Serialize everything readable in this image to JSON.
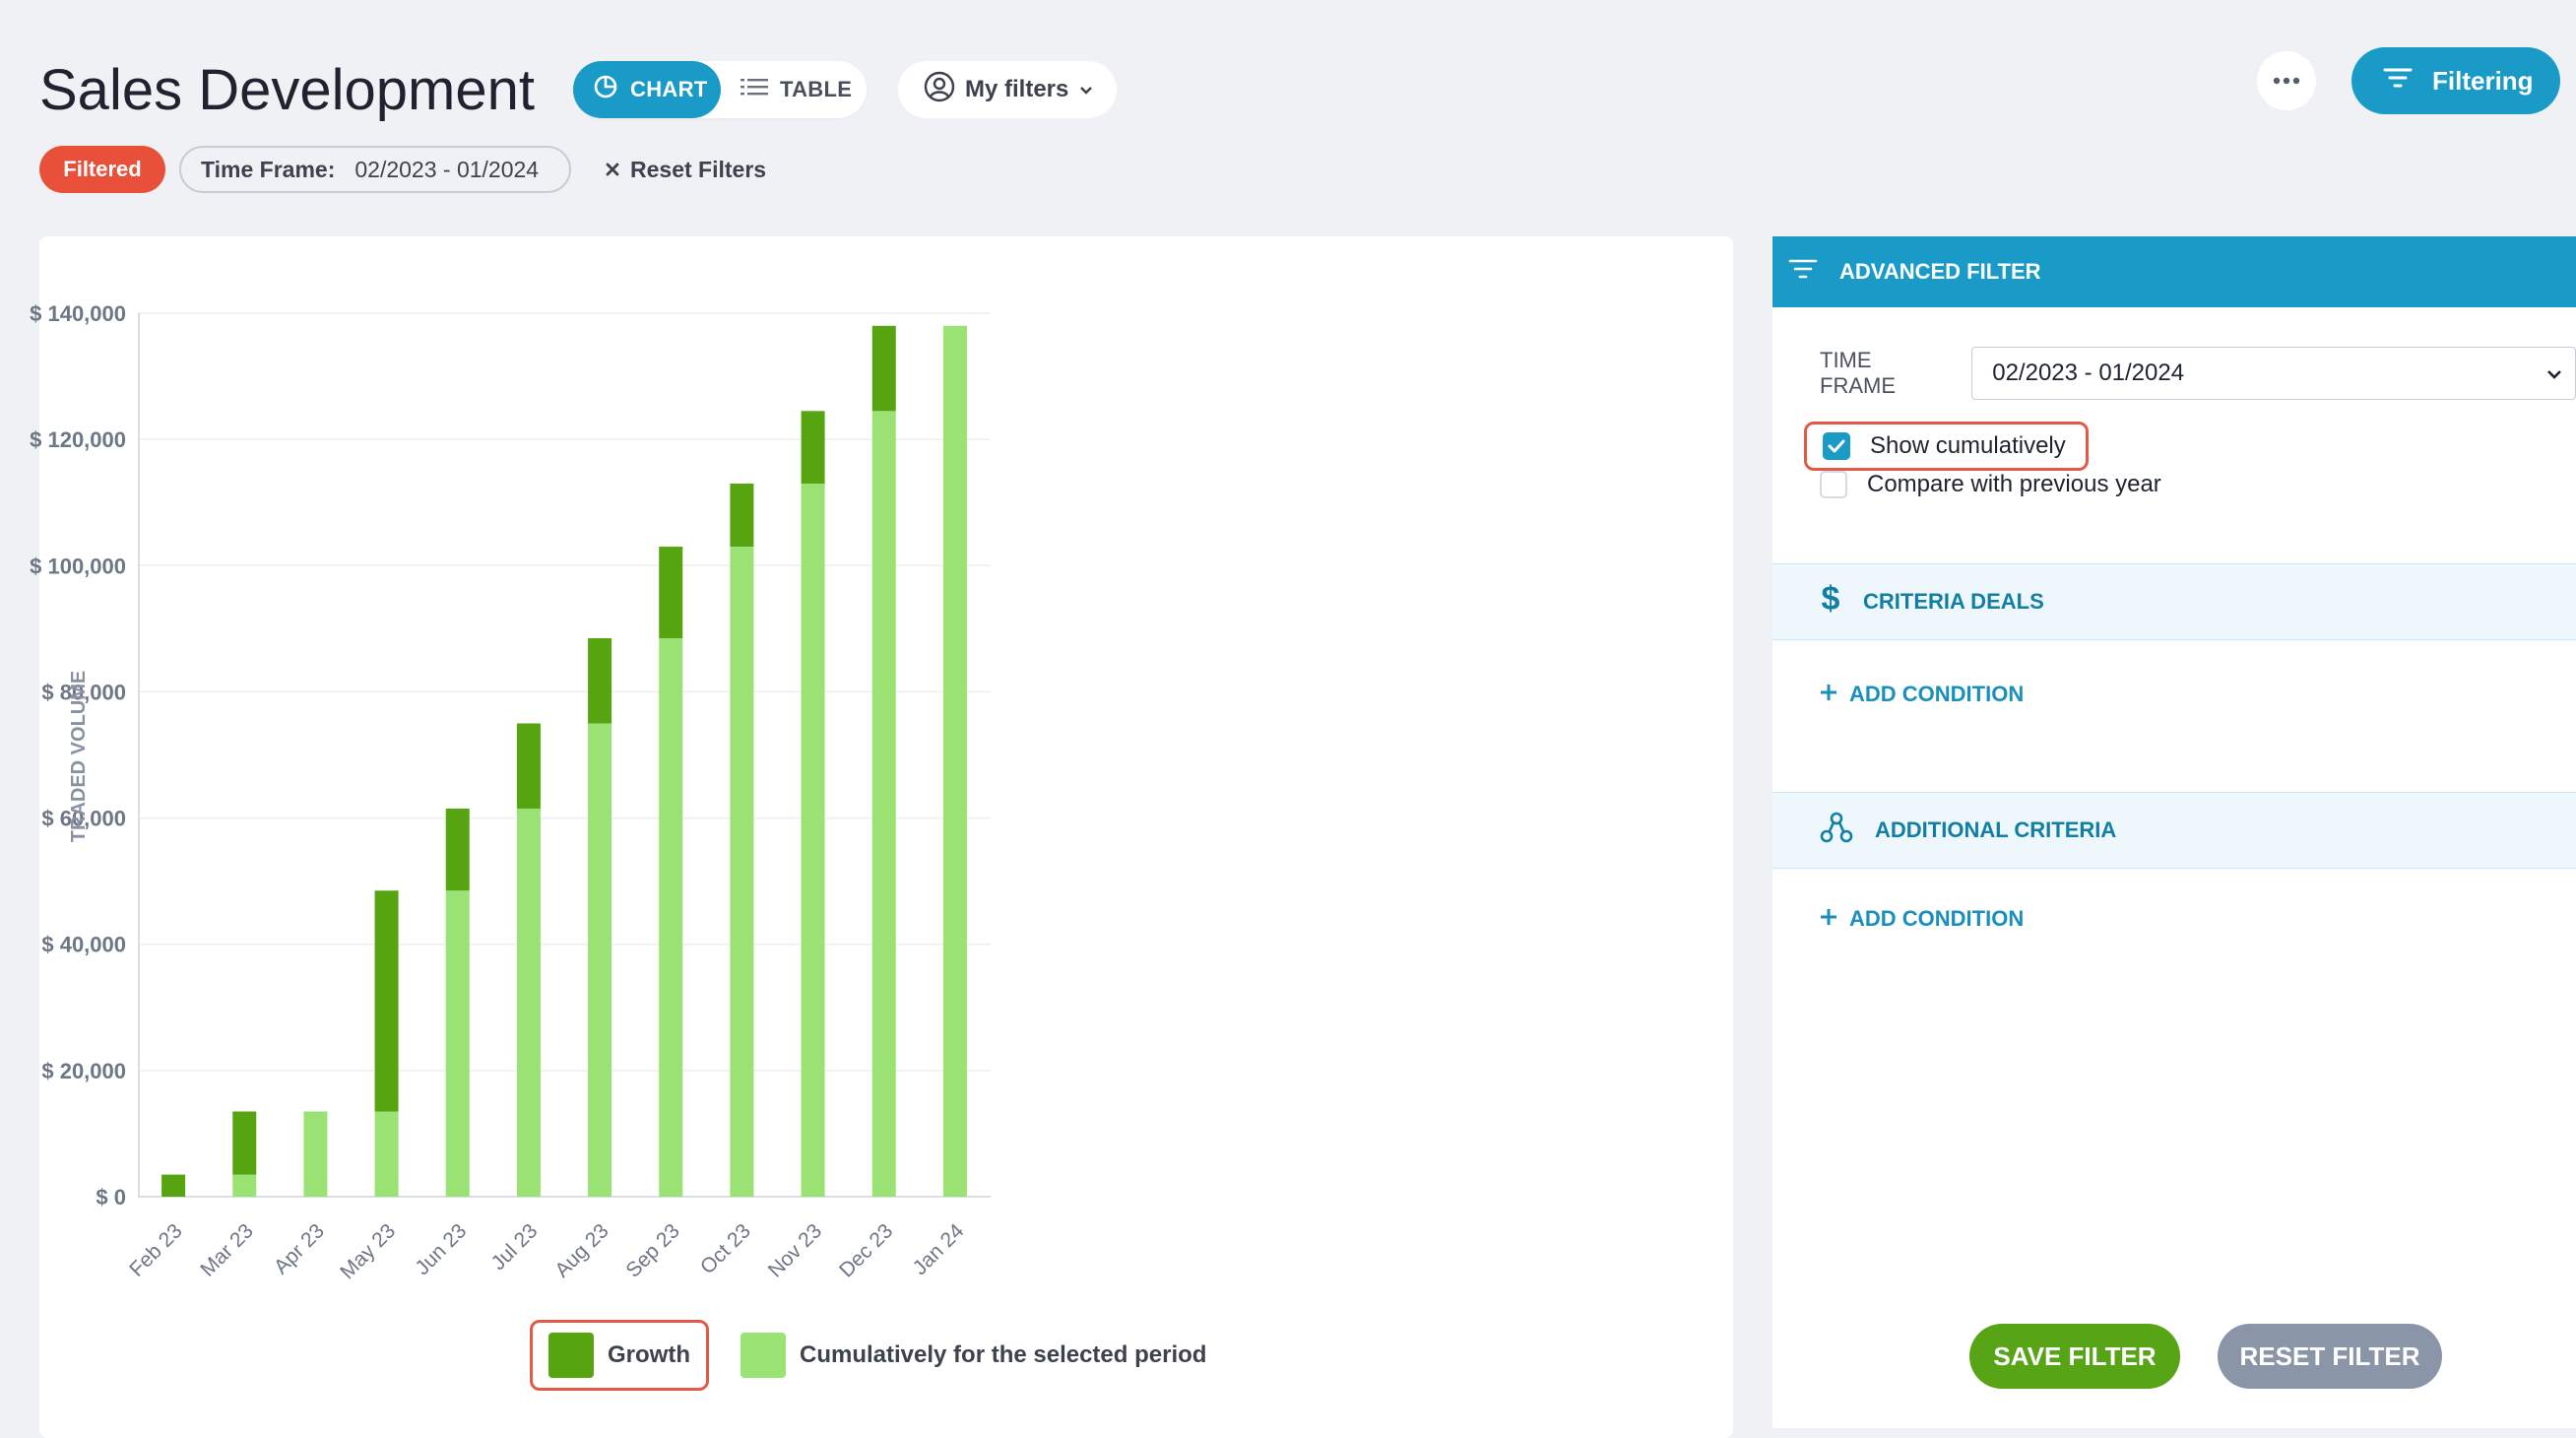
{
  "header": {
    "title": "Sales Development",
    "view_toggle": {
      "chart_label": "CHART",
      "table_label": "TABLE",
      "active": "chart"
    },
    "my_filters_label": "My filters",
    "filtering_label": "Filtering"
  },
  "filter_chips": {
    "filtered_label": "Filtered",
    "timeframe_label": "Time Frame:",
    "timeframe_value": "02/2023 - 01/2024",
    "reset_label": "Reset Filters"
  },
  "chart_data": {
    "type": "bar",
    "stacked": true,
    "categories": [
      "Feb 23",
      "Mar 23",
      "Apr 23",
      "May 23",
      "Jun 23",
      "Jul 23",
      "Aug 23",
      "Sep 23",
      "Oct 23",
      "Nov 23",
      "Dec 23",
      "Jan 24"
    ],
    "series": [
      {
        "name": "Cumulatively for the selected period",
        "color": "#9be274",
        "values": [
          0,
          3500,
          13500,
          13500,
          48500,
          61500,
          75000,
          88500,
          103000,
          113000,
          124500,
          138000
        ]
      },
      {
        "name": "Growth",
        "color": "#56a40f",
        "values": [
          3500,
          10000,
          0,
          35000,
          13000,
          13500,
          13500,
          14500,
          10000,
          11500,
          13500,
          0
        ]
      }
    ],
    "ylabel": "TRADED VOLUME",
    "ylim": [
      0,
      140000
    ],
    "yticks": [
      0,
      20000,
      40000,
      60000,
      80000,
      100000,
      120000,
      140000
    ],
    "ytick_labels": [
      "$ 0",
      "$ 20,000",
      "$ 40,000",
      "$ 60,000",
      "$ 80,000",
      "$ 100,000",
      "$ 120,000",
      "$ 140,000"
    ],
    "grid": true,
    "legend_position": "bottom"
  },
  "legend": {
    "growth_label": "Growth",
    "cumulative_label": "Cumulatively for the selected period",
    "growth_color": "#56a40f",
    "cumulative_color": "#9be274"
  },
  "panel": {
    "header_label": "ADVANCED FILTER",
    "time_frame_label": "TIME FRAME",
    "time_frame_value": "02/2023 - 01/2024",
    "show_cumulatively_label": "Show cumulatively",
    "show_cumulatively_checked": true,
    "compare_label": "Compare with previous year",
    "compare_checked": false,
    "criteria_deals_label": "CRITERIA DEALS",
    "additional_criteria_label": "ADDITIONAL CRITERIA",
    "add_condition_label": "ADD CONDITION",
    "save_label": "SAVE FILTER",
    "reset_label": "RESET FILTER"
  },
  "colors": {
    "accent": "#1a9bc7",
    "filtered_chip": "#e8503a",
    "save_button": "#58a417",
    "reset_button": "#8b95a8",
    "highlight_outline": "#e05a46"
  }
}
